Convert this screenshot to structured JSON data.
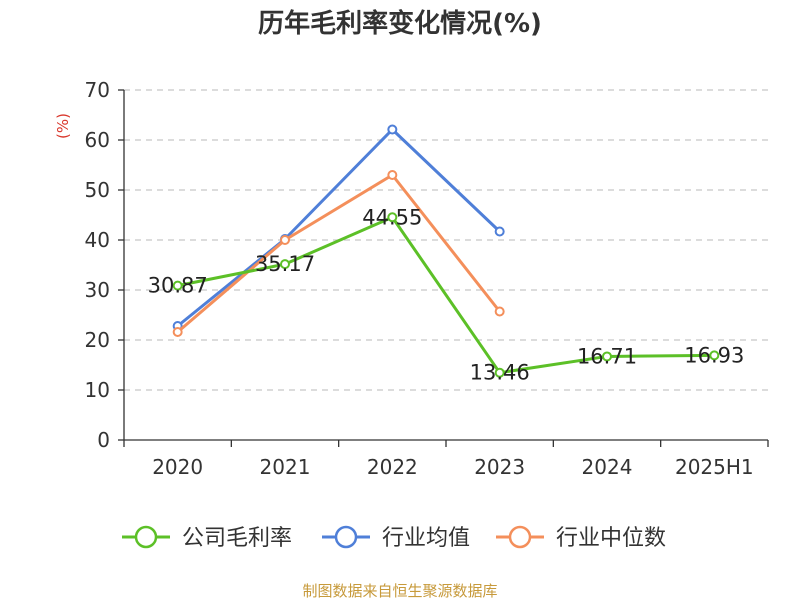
{
  "chart_data": {
    "type": "line",
    "title": "历年毛利率变化情况(%)",
    "ylabel": "(%)",
    "xlabel": "",
    "categories": [
      "2020",
      "2021",
      "2022",
      "2023",
      "2024",
      "2025H1"
    ],
    "ylim": [
      0,
      70
    ],
    "yticks": [
      0,
      10,
      20,
      30,
      40,
      50,
      60,
      70
    ],
    "grid": true,
    "legend_position": "bottom",
    "series": [
      {
        "name": "公司毛利率",
        "color": "#5cc027",
        "values": [
          30.87,
          35.17,
          44.55,
          13.46,
          16.71,
          16.93
        ],
        "labels": [
          "30.87",
          "35.17",
          "44.55",
          "13.46",
          "16.71",
          "16.93"
        ]
      },
      {
        "name": "行业均值",
        "color": "#4f7fd8",
        "values": [
          22.8,
          40.2,
          62.1,
          41.7,
          null,
          null
        ],
        "labels": []
      },
      {
        "name": "行业中位数",
        "color": "#f48f5b",
        "values": [
          21.6,
          40.0,
          53.0,
          25.7,
          null,
          null
        ],
        "labels": []
      }
    ]
  },
  "footer": {
    "source": "制图数据来自恒生聚源数据库"
  }
}
